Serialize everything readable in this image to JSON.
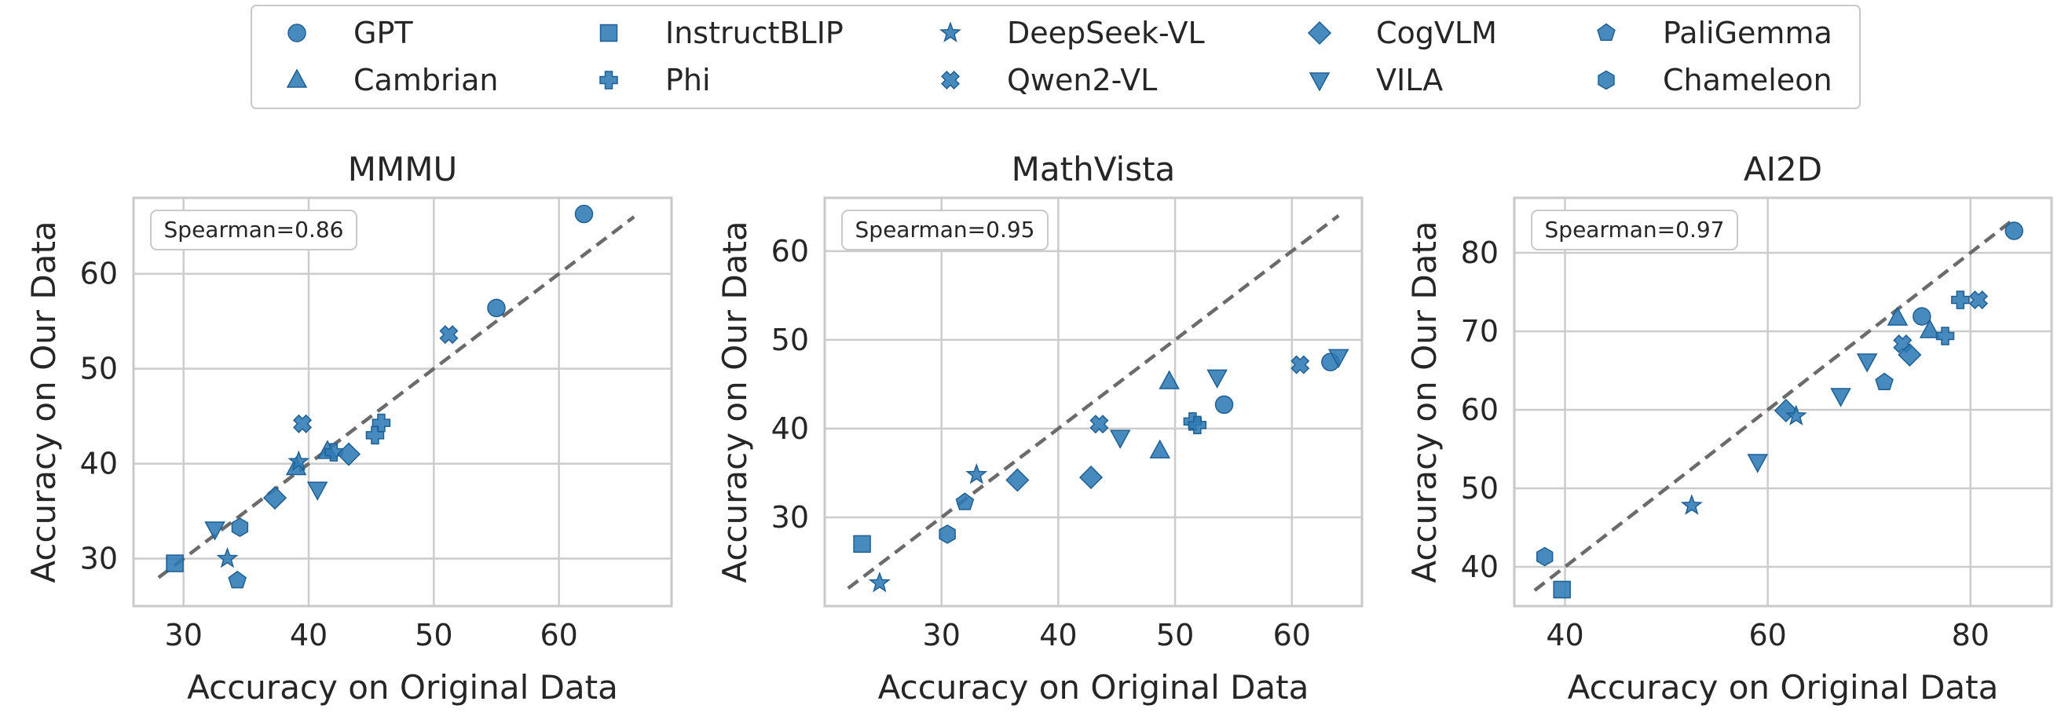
{
  "style": {
    "marker_color": "#2e7ab5",
    "marker_edge": "#1f5f94",
    "grid_color": "#cccccc",
    "frame_color": "#c9c9c9",
    "diagonal_color": "#6b6b6b",
    "text_color": "#262626"
  },
  "legend": {
    "placement": "top-center",
    "columns": 5,
    "entries": [
      {
        "name": "GPT",
        "marker": "circle"
      },
      {
        "name": "InstructBLIP",
        "marker": "square"
      },
      {
        "name": "DeepSeek-VL",
        "marker": "star"
      },
      {
        "name": "CogVLM",
        "marker": "diamond"
      },
      {
        "name": "PaliGemma",
        "marker": "pentagon"
      },
      {
        "name": "Cambrian",
        "marker": "triangle-up"
      },
      {
        "name": "Phi",
        "marker": "plus-filled"
      },
      {
        "name": "Qwen2-VL",
        "marker": "x-filled"
      },
      {
        "name": "VILA",
        "marker": "triangle-down"
      },
      {
        "name": "Chameleon",
        "marker": "hexagon"
      }
    ]
  },
  "chart_data": [
    {
      "type": "scatter",
      "title": "MMMU",
      "xlabel": "Accuracy on Original Data",
      "ylabel": "Accuracy on Our Data",
      "xlim": [
        26,
        69
      ],
      "ylim": [
        25,
        68
      ],
      "xticks": [
        30,
        40,
        50,
        60
      ],
      "yticks": [
        30,
        40,
        50,
        60
      ],
      "grid": true,
      "diagonal": [
        28,
        66
      ],
      "annotation": "Spearman=0.86",
      "points": [
        {
          "series": "InstructBLIP",
          "x": 29.3,
          "y": 29.5
        },
        {
          "series": "VILA",
          "x": 32.5,
          "y": 33.1
        },
        {
          "series": "DeepSeek-VL",
          "x": 33.5,
          "y": 30.0
        },
        {
          "series": "Chameleon",
          "x": 34.5,
          "y": 33.3
        },
        {
          "series": "PaliGemma",
          "x": 34.3,
          "y": 27.7
        },
        {
          "series": "CogVLM",
          "x": 37.3,
          "y": 36.4
        },
        {
          "series": "Cambrian",
          "x": 39.0,
          "y": 39.6
        },
        {
          "series": "DeepSeek-VL",
          "x": 39.2,
          "y": 40.2
        },
        {
          "series": "Qwen2-VL",
          "x": 39.5,
          "y": 44.2
        },
        {
          "series": "VILA",
          "x": 40.7,
          "y": 37.3
        },
        {
          "series": "Cambrian",
          "x": 41.5,
          "y": 41.3
        },
        {
          "series": "Phi",
          "x": 42.0,
          "y": 41.2
        },
        {
          "series": "CogVLM",
          "x": 43.2,
          "y": 41.0
        },
        {
          "series": "Phi",
          "x": 45.3,
          "y": 43.0
        },
        {
          "series": "Phi",
          "x": 45.8,
          "y": 44.3
        },
        {
          "series": "Qwen2-VL",
          "x": 51.2,
          "y": 53.6
        },
        {
          "series": "GPT",
          "x": 55.0,
          "y": 56.4
        },
        {
          "series": "GPT",
          "x": 62.0,
          "y": 66.3
        }
      ]
    },
    {
      "type": "scatter",
      "title": "MathVista",
      "xlabel": "Accuracy on Original Data",
      "ylabel": "Accuracy on Our Data",
      "xlim": [
        20,
        66
      ],
      "ylim": [
        20,
        66
      ],
      "xticks": [
        30,
        40,
        50,
        60
      ],
      "yticks": [
        30,
        40,
        50,
        60
      ],
      "grid": true,
      "diagonal": [
        22,
        64
      ],
      "annotation": "Spearman=0.95",
      "points": [
        {
          "series": "InstructBLIP",
          "x": 23.2,
          "y": 27.0
        },
        {
          "series": "DeepSeek-VL",
          "x": 24.7,
          "y": 22.6
        },
        {
          "series": "Chameleon",
          "x": 30.5,
          "y": 28.1
        },
        {
          "series": "PaliGemma",
          "x": 32.0,
          "y": 31.7
        },
        {
          "series": "DeepSeek-VL",
          "x": 33.0,
          "y": 34.8
        },
        {
          "series": "CogVLM",
          "x": 36.5,
          "y": 34.2
        },
        {
          "series": "CogVLM",
          "x": 42.8,
          "y": 34.5
        },
        {
          "series": "Qwen2-VL",
          "x": 43.5,
          "y": 40.5
        },
        {
          "series": "VILA",
          "x": 45.3,
          "y": 39.0
        },
        {
          "series": "Cambrian",
          "x": 48.7,
          "y": 37.5
        },
        {
          "series": "Cambrian",
          "x": 49.5,
          "y": 45.3
        },
        {
          "series": "Phi",
          "x": 51.5,
          "y": 40.8
        },
        {
          "series": "Phi",
          "x": 51.9,
          "y": 40.4
        },
        {
          "series": "VILA",
          "x": 53.6,
          "y": 45.8
        },
        {
          "series": "GPT",
          "x": 54.2,
          "y": 42.7
        },
        {
          "series": "Qwen2-VL",
          "x": 60.7,
          "y": 47.2
        },
        {
          "series": "GPT",
          "x": 63.3,
          "y": 47.5
        },
        {
          "series": "VILA",
          "x": 64.0,
          "y": 48.1
        }
      ]
    },
    {
      "type": "scatter",
      "title": "AI2D",
      "xlabel": "Accuracy on Original Data",
      "ylabel": "Accuracy on Our Data",
      "xlim": [
        35,
        88
      ],
      "ylim": [
        35,
        87
      ],
      "xticks": [
        40,
        60,
        80
      ],
      "yticks": [
        40,
        50,
        60,
        70,
        80
      ],
      "grid": true,
      "diagonal": [
        37,
        84
      ],
      "annotation": "Spearman=0.97",
      "points": [
        {
          "series": "Chameleon",
          "x": 38.0,
          "y": 41.3
        },
        {
          "series": "InstructBLIP",
          "x": 39.7,
          "y": 37.1
        },
        {
          "series": "DeepSeek-VL",
          "x": 52.5,
          "y": 47.8
        },
        {
          "series": "VILA",
          "x": 59.0,
          "y": 53.4
        },
        {
          "series": "CogVLM",
          "x": 61.8,
          "y": 59.9
        },
        {
          "series": "DeepSeek-VL",
          "x": 62.8,
          "y": 59.2
        },
        {
          "series": "VILA",
          "x": 67.2,
          "y": 61.8
        },
        {
          "series": "VILA",
          "x": 69.8,
          "y": 66.2
        },
        {
          "series": "PaliGemma",
          "x": 71.5,
          "y": 63.5
        },
        {
          "series": "Cambrian",
          "x": 72.8,
          "y": 71.7
        },
        {
          "series": "Qwen2-VL",
          "x": 73.3,
          "y": 68.4
        },
        {
          "series": "CogVLM",
          "x": 74.0,
          "y": 67.0
        },
        {
          "series": "GPT",
          "x": 75.2,
          "y": 71.9
        },
        {
          "series": "Cambrian",
          "x": 76.0,
          "y": 70.1
        },
        {
          "series": "Phi",
          "x": 77.5,
          "y": 69.4
        },
        {
          "series": "Phi",
          "x": 79.0,
          "y": 74.0
        },
        {
          "series": "Qwen2-VL",
          "x": 80.8,
          "y": 74.0
        },
        {
          "series": "GPT",
          "x": 84.3,
          "y": 82.8
        }
      ]
    }
  ]
}
